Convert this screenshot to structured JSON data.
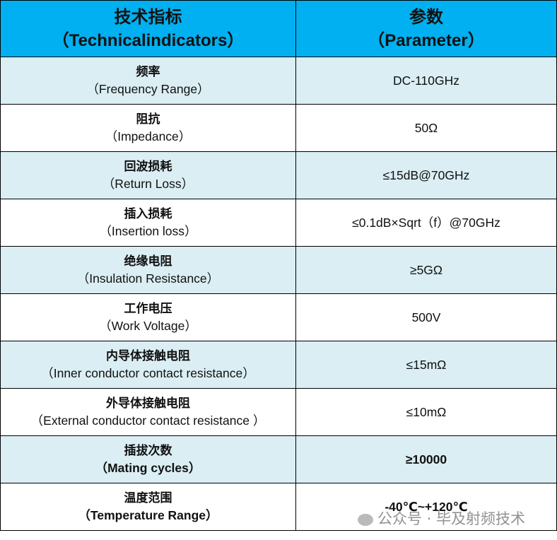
{
  "header": {
    "col1_title": "技术指标",
    "col1_subtitle": "（Technicalindicators）",
    "col2_title": "参数",
    "col2_subtitle": "（Parameter）"
  },
  "table": {
    "rows": [
      [
        "频率",
        "（Frequency Range）",
        "DC-110GHz"
      ],
      [
        "阻抗",
        "（Impedance）",
        "50Ω"
      ],
      [
        "回波损耗",
        "（Return Loss）",
        "≤15dB@70GHz"
      ],
      [
        "插入损耗",
        "（Insertion loss）",
        "≤0.1dB×Sqrt（f）@70GHz"
      ],
      [
        "绝缘电阻",
        "（Insulation Resistance）",
        "≥5GΩ"
      ],
      [
        "工作电压",
        "（Work Voltage）",
        "500V"
      ],
      [
        "内导体接触电阻",
        "（Inner conductor contact resistance）",
        "≤15mΩ"
      ],
      [
        "外导体接触电阻",
        "（External conductor contact resistance ）",
        "≤10mΩ"
      ],
      [
        "插拔次数",
        "（Mating cycles）",
        "≥10000"
      ],
      [
        "温度范围",
        "（Temperature Range）",
        "-40℃~+120℃"
      ]
    ]
  },
  "watermark": "公众号 · 毕及射频技术"
}
